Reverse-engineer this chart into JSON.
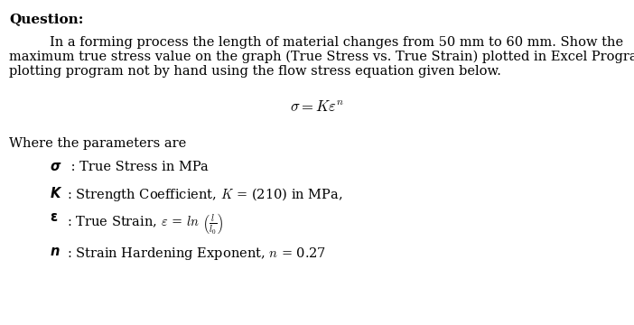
{
  "bg_color": "#ffffff",
  "text_color": "#000000",
  "title": "Question:",
  "para_line1": "In a forming process the length of material changes from 50 mm to 60 mm. Show the",
  "para_line2": "maximum true stress value on the graph (True Stress vs. True Strain) plotted in Excel Program or any",
  "para_line3": "plotting program not by hand using the flow stress equation given below.",
  "equation": "$\\sigma = K\\varepsilon^n$",
  "where_text": "Where the parameters are",
  "p1_symbol": "$\\boldsymbol{\\sigma}$",
  "p1_text": " : True Stress in MPa",
  "p2_symbol": "$\\boldsymbol{K}$",
  "p2_text": ": Strength Coefficient, $K$ = (210) in MPa,",
  "p3_symbol": "$\\boldsymbol{\\varepsilon}$",
  "p3_text": ": True Strain, $\\varepsilon$ = $\\mathit{ln}$ $\\left(\\frac{l}{l_0}\\right)$",
  "p4_symbol": "$\\boldsymbol{n}$",
  "p4_text": ": Strain Hardening Exponent, $n$ = 0.27",
  "fs_body": 10.5,
  "fs_title": 11,
  "fs_eq": 12
}
